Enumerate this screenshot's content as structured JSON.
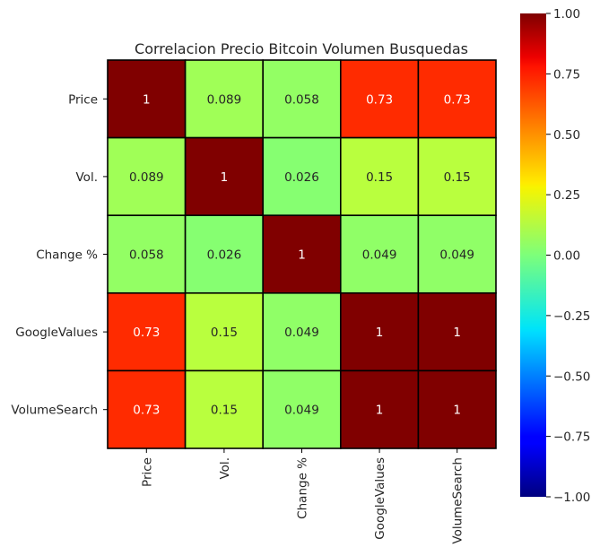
{
  "chart_data": {
    "type": "heatmap",
    "title": "Correlacion Precio Bitcoin Volumen Busquedas",
    "xlabel": "",
    "ylabel": "",
    "rows": [
      "Price",
      "Vol.",
      "Change %",
      "GoogleValues",
      "VolumeSearch"
    ],
    "cols": [
      "Price",
      "Vol.",
      "Change %",
      "GoogleValues",
      "VolumeSearch"
    ],
    "values": [
      [
        1,
        0.089,
        0.058,
        0.73,
        0.73
      ],
      [
        0.089,
        1,
        0.026,
        0.15,
        0.15
      ],
      [
        0.058,
        0.026,
        1,
        0.049,
        0.049
      ],
      [
        0.73,
        0.15,
        0.049,
        1,
        1
      ],
      [
        0.73,
        0.15,
        0.049,
        1,
        1
      ]
    ],
    "labels": [
      [
        "1",
        "0.089",
        "0.058",
        "0.73",
        "0.73"
      ],
      [
        "0.089",
        "1",
        "0.026",
        "0.15",
        "0.15"
      ],
      [
        "0.058",
        "0.026",
        "1",
        "0.049",
        "0.049"
      ],
      [
        "0.73",
        "0.15",
        "0.049",
        "1",
        "1"
      ],
      [
        "0.73",
        "0.15",
        "0.049",
        "1",
        "1"
      ]
    ],
    "colormap": "jet",
    "vmin": -1,
    "vmax": 1,
    "colorbar_ticks": [
      "1.00",
      "0.75",
      "0.50",
      "0.25",
      "0.00",
      "−0.25",
      "−0.50",
      "−0.75",
      "−1.00"
    ],
    "colorbar_tick_values": [
      1,
      0.75,
      0.5,
      0.25,
      0,
      -0.25,
      -0.5,
      -0.75,
      -1
    ],
    "cell_border_color": "#000000"
  }
}
